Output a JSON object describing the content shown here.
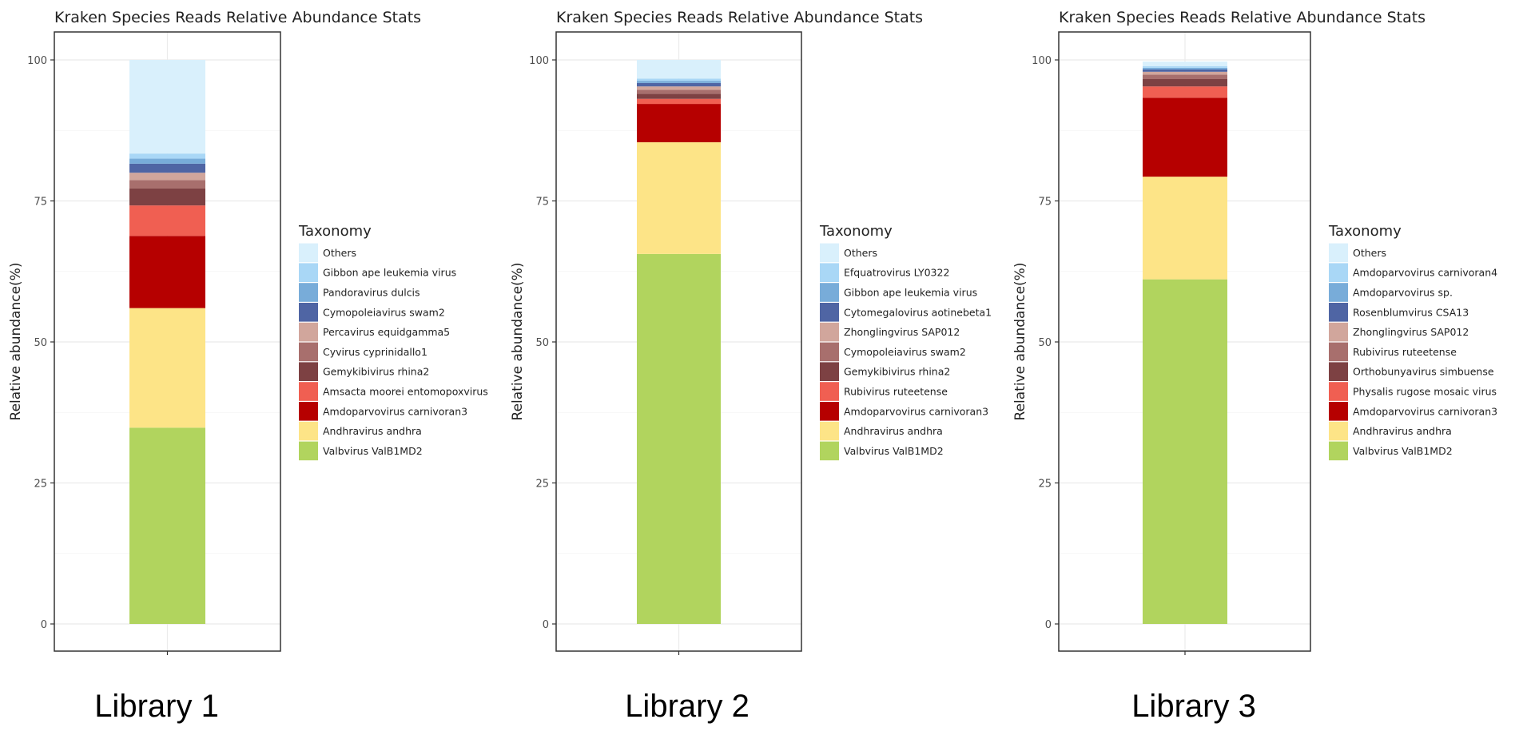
{
  "chart_data": [
    {
      "type": "bar",
      "stacked": true,
      "title": "Kraken Species Reads Relative Abundance Stats",
      "ylabel": "Relative abundance(%)",
      "xlabel": "",
      "ylim": [
        0,
        100
      ],
      "yticks": [
        0,
        25,
        50,
        75,
        100
      ],
      "grid": true,
      "legend_title": "Taxonomy",
      "legend_position": "right",
      "library_label": "Library 1",
      "series": [
        {
          "name": "Valbvirus ValB1MD2",
          "value": 34.8,
          "color": "#b1d45e"
        },
        {
          "name": "Andhravirus andhra",
          "value": 21.2,
          "color": "#fde487"
        },
        {
          "name": "Amdoparvovirus carnivoran3",
          "value": 12.8,
          "color": "#b60000"
        },
        {
          "name": "Amsacta moorei entomopoxvirus",
          "value": 5.4,
          "color": "#f05f52"
        },
        {
          "name": "Gemykibivirus rhina2",
          "value": 3.0,
          "color": "#7d4143"
        },
        {
          "name": "Cyvirus cyprinidallo1",
          "value": 1.5,
          "color": "#a86f6d"
        },
        {
          "name": "Percavirus equidgamma5",
          "value": 1.3,
          "color": "#d1a69c"
        },
        {
          "name": "Cymopoleiavirus swam2",
          "value": 1.6,
          "color": "#4f65a4"
        },
        {
          "name": "Pandoravirus dulcis",
          "value": 0.9,
          "color": "#78acd9"
        },
        {
          "name": "Gibbon ape leukemia virus",
          "value": 0.9,
          "color": "#a9d7f6"
        },
        {
          "name": "Others",
          "value": 16.6,
          "color": "#d9f0fc"
        }
      ]
    },
    {
      "type": "bar",
      "stacked": true,
      "title": "Kraken Species Reads Relative Abundance Stats",
      "ylabel": "Relative abundance(%)",
      "xlabel": "",
      "ylim": [
        0,
        100
      ],
      "yticks": [
        0,
        25,
        50,
        75,
        100
      ],
      "grid": true,
      "legend_title": "Taxonomy",
      "legend_position": "right",
      "library_label": "Library 2",
      "series": [
        {
          "name": "Valbvirus ValB1MD2",
          "value": 65.6,
          "color": "#b1d45e"
        },
        {
          "name": "Andhravirus andhra",
          "value": 19.8,
          "color": "#fde487"
        },
        {
          "name": "Amdoparvovirus carnivoran3",
          "value": 6.8,
          "color": "#b60000"
        },
        {
          "name": "Rubivirus ruteetense",
          "value": 0.9,
          "color": "#f05f52"
        },
        {
          "name": "Gemykibivirus rhina2",
          "value": 0.9,
          "color": "#7d4143"
        },
        {
          "name": "Cymopoleiavirus swam2",
          "value": 0.7,
          "color": "#a86f6d"
        },
        {
          "name": "Zhonglingvirus SAP012",
          "value": 0.6,
          "color": "#d1a69c"
        },
        {
          "name": "Cytomegalovirus aotinebeta1",
          "value": 0.6,
          "color": "#4f65a4"
        },
        {
          "name": "Gibbon ape leukemia virus",
          "value": 0.4,
          "color": "#78acd9"
        },
        {
          "name": "Efquatrovirus LY0322",
          "value": 0.4,
          "color": "#a9d7f6"
        },
        {
          "name": "Others",
          "value": 3.3,
          "color": "#d9f0fc"
        }
      ]
    },
    {
      "type": "bar",
      "stacked": true,
      "title": "Kraken Species Reads Relative Abundance Stats",
      "ylabel": "Relative abundance(%)",
      "xlabel": "",
      "ylim": [
        0,
        100
      ],
      "yticks": [
        0,
        25,
        50,
        75,
        100
      ],
      "grid": true,
      "legend_title": "Taxonomy",
      "legend_position": "right",
      "library_label": "Library 3",
      "series": [
        {
          "name": "Valbvirus ValB1MD2",
          "value": 61.1,
          "color": "#b1d45e"
        },
        {
          "name": "Andhravirus andhra",
          "value": 18.2,
          "color": "#fde487"
        },
        {
          "name": "Amdoparvovirus carnivoran3",
          "value": 14.0,
          "color": "#b60000"
        },
        {
          "name": "Physalis rugose mosaic virus",
          "value": 2.0,
          "color": "#f05f52"
        },
        {
          "name": "Orthobunyavirus simbuense",
          "value": 1.3,
          "color": "#7d4143"
        },
        {
          "name": "Rubivirus ruteetense",
          "value": 0.8,
          "color": "#a86f6d"
        },
        {
          "name": "Zhonglingvirus SAP012",
          "value": 0.5,
          "color": "#d1a69c"
        },
        {
          "name": "Rosenblumvirus CSA13",
          "value": 0.4,
          "color": "#4f65a4"
        },
        {
          "name": "Amdoparvovirus sp.",
          "value": 0.3,
          "color": "#78acd9"
        },
        {
          "name": "Amdoparvovirus carnivoran4",
          "value": 0.3,
          "color": "#a9d7f6"
        },
        {
          "name": "Others",
          "value": 0.8,
          "color": "#d9f0fc"
        }
      ]
    }
  ]
}
